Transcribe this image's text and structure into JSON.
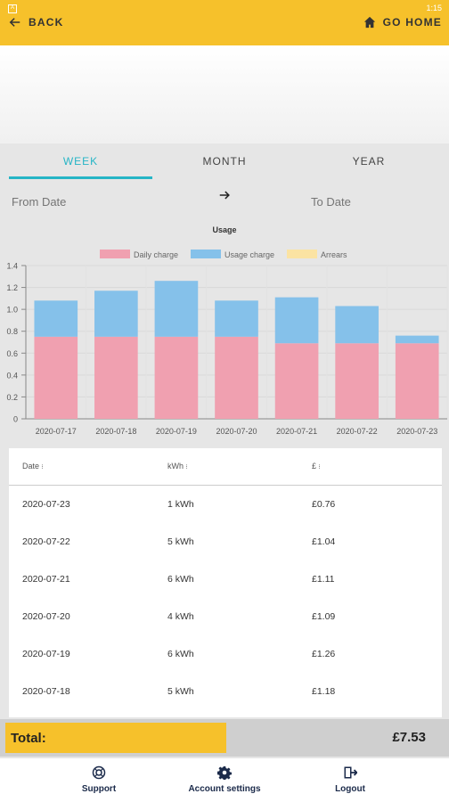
{
  "status_bar": {
    "time": "1:15"
  },
  "header": {
    "back_label": "BACK",
    "home_label": "GO HOME"
  },
  "tabs": [
    {
      "label": "WEEK",
      "active": true
    },
    {
      "label": "MONTH",
      "active": false
    },
    {
      "label": "YEAR",
      "active": false
    }
  ],
  "dates": {
    "from_placeholder": "From Date",
    "to_placeholder": "To Date"
  },
  "chart_data": {
    "type": "bar",
    "stacked": true,
    "title": "Usage",
    "categories": [
      "2020-07-17",
      "2020-07-18",
      "2020-07-19",
      "2020-07-20",
      "2020-07-21",
      "2020-07-22",
      "2020-07-23"
    ],
    "series": [
      {
        "name": "Daily charge",
        "color": "#f0a0b0",
        "values": [
          0.75,
          0.75,
          0.75,
          0.75,
          0.69,
          0.69,
          0.69
        ]
      },
      {
        "name": "Usage charge",
        "color": "#85c1ea",
        "values": [
          0.33,
          0.42,
          0.51,
          0.33,
          0.42,
          0.34,
          0.07
        ]
      },
      {
        "name": "Arrears",
        "color": "#fbe3a3",
        "values": [
          0,
          0,
          0,
          0,
          0,
          0,
          0
        ]
      }
    ],
    "yticks": [
      "0",
      "0.2",
      "0.4",
      "0.6",
      "0.8",
      "1.0",
      "1.2",
      "1.4"
    ],
    "ylim": [
      0,
      1.4
    ],
    "legend_position": "top-center",
    "grid": true
  },
  "table": {
    "headers": [
      "Date",
      "kWh",
      "£"
    ],
    "sort_icon": "sort-icon",
    "rows": [
      [
        "2020-07-23",
        "1 kWh",
        "£0.76"
      ],
      [
        "2020-07-22",
        "5 kWh",
        "£1.04"
      ],
      [
        "2020-07-21",
        "6 kWh",
        "£1.11"
      ],
      [
        "2020-07-20",
        "4 kWh",
        "£1.09"
      ],
      [
        "2020-07-19",
        "6 kWh",
        "£1.26"
      ],
      [
        "2020-07-18",
        "5 kWh",
        "£1.18"
      ]
    ]
  },
  "total": {
    "label": "Total:",
    "value": "£7.53"
  },
  "bottom_nav": [
    {
      "label": "Support",
      "icon": "support-icon"
    },
    {
      "label": "Account settings",
      "icon": "gear-icon"
    },
    {
      "label": "Logout",
      "icon": "logout-icon"
    }
  ],
  "colors": {
    "accent_yellow": "#f6c12b",
    "tab_active": "#26b5c6",
    "nav_text": "#1b2a4a"
  }
}
